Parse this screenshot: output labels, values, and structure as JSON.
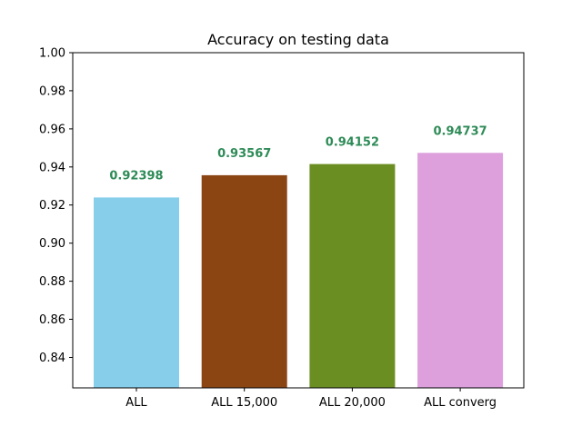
{
  "chart_data": {
    "type": "bar",
    "title": "Accuracy on testing data",
    "xlabel": "",
    "ylabel": "",
    "categories": [
      "ALL",
      "ALL 15,000",
      "ALL 20,000",
      "ALL converg"
    ],
    "values": [
      0.92398,
      0.93567,
      0.94152,
      0.94737
    ],
    "value_labels": [
      "0.92398",
      "0.93567",
      "0.94152",
      "0.94737"
    ],
    "bar_colors": [
      "#87ceeb",
      "#8b4513",
      "#6b8e23",
      "#dda0dd"
    ],
    "label_color": "#2e8b57",
    "ylim": [
      0.824,
      1.0
    ],
    "yticks": [
      0.84,
      0.86,
      0.88,
      0.9,
      0.92,
      0.94,
      0.96,
      0.98,
      1.0
    ],
    "ytick_labels": [
      "0.84",
      "0.86",
      "0.88",
      "0.90",
      "0.92",
      "0.94",
      "0.96",
      "0.98",
      "1.00"
    ],
    "grid": false,
    "legend": "none"
  }
}
